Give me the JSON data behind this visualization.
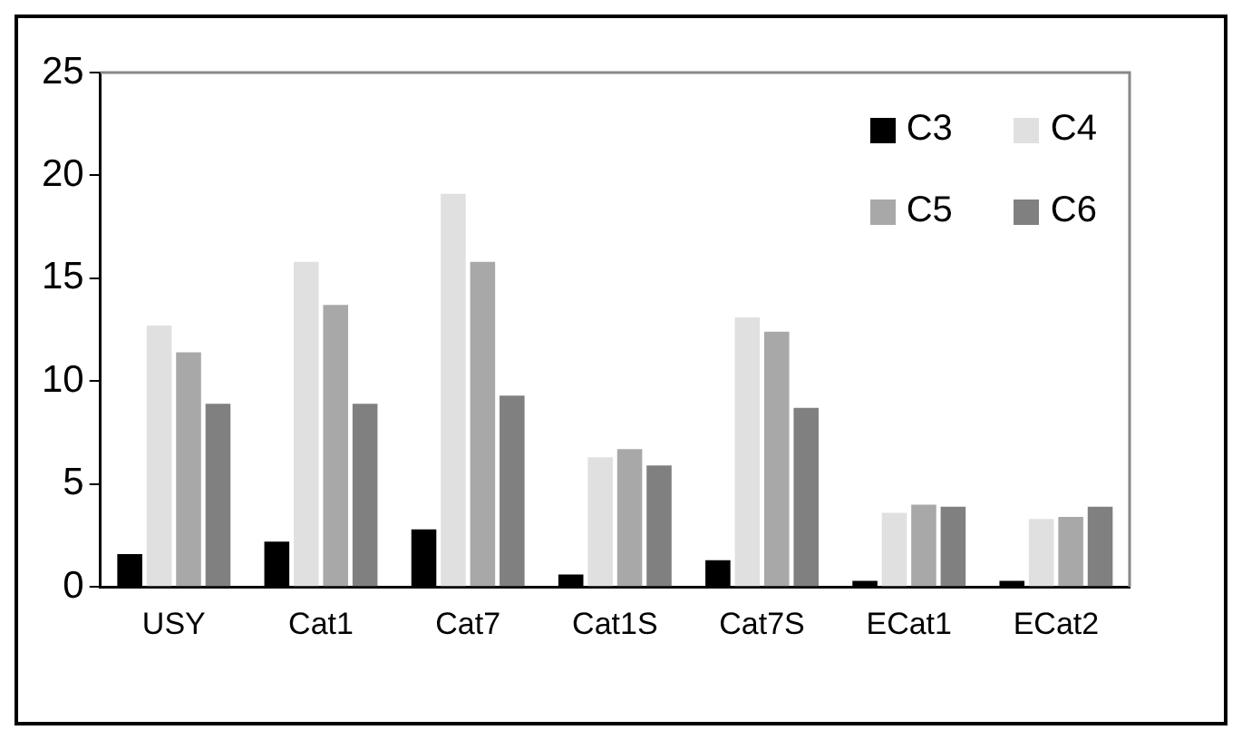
{
  "chart_data": {
    "type": "bar",
    "categories": [
      "USY",
      "Cat1",
      "Cat7",
      "Cat1S",
      "Cat7S",
      "ECat1",
      "ECat2"
    ],
    "series": [
      {
        "name": "C3",
        "color": "#000000",
        "values": [
          1.6,
          2.2,
          2.8,
          0.6,
          1.3,
          0.3,
          0.3
        ]
      },
      {
        "name": "C4",
        "color": "#e0e0e0",
        "values": [
          12.7,
          15.8,
          19.1,
          6.3,
          13.1,
          3.6,
          3.3
        ]
      },
      {
        "name": "C5",
        "color": "#a8a8a8",
        "values": [
          11.4,
          13.7,
          15.8,
          6.7,
          12.4,
          4.0,
          3.4
        ]
      },
      {
        "name": "C6",
        "color": "#808080",
        "values": [
          8.9,
          8.9,
          9.3,
          5.9,
          8.7,
          3.9,
          3.9
        ]
      }
    ],
    "ylim": [
      0,
      25
    ],
    "yticks": [
      0,
      5,
      10,
      15,
      20,
      25
    ],
    "grid": false,
    "legend": "top right"
  }
}
